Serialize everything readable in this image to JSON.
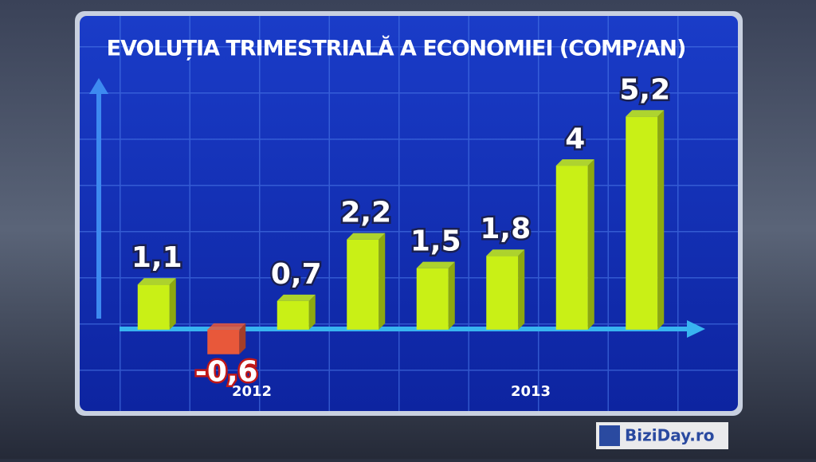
{
  "chart_data": {
    "type": "bar",
    "title": "EVOLUȚIA TRIMESTRIALĂ A ECONOMIEI (COMP/AN)",
    "categories": [
      null,
      null,
      null,
      null,
      null,
      null,
      null,
      null
    ],
    "x_groups": [
      "2012",
      "2013"
    ],
    "values": [
      1.1,
      -0.6,
      0.7,
      2.2,
      1.5,
      1.8,
      4,
      5.2
    ],
    "value_labels": [
      "1,1",
      "-0,6",
      "0,7",
      "2,2",
      "1,5",
      "1,8",
      "4",
      "5,2"
    ],
    "color": "#c9f016",
    "negative_color": "#e8583a",
    "ylim": [
      -0.8,
      6.1
    ],
    "watermark": "BiziDay.ro"
  }
}
